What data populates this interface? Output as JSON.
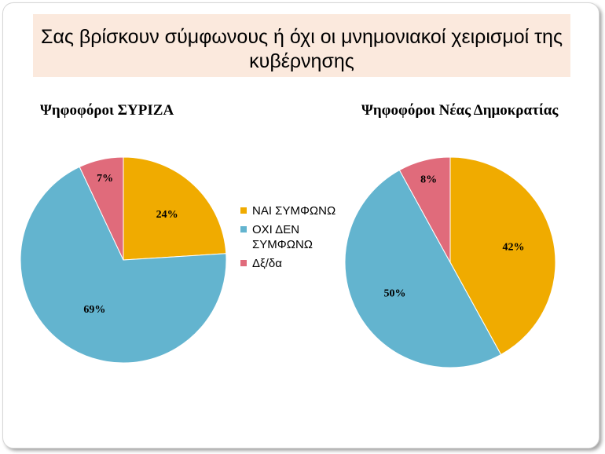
{
  "title": "Σας βρίσκουν σύμφωνους ή όχι οι μνημονιακοί χειρισμοί της κυβέρνησης",
  "legend": [
    {
      "label": "ΝΑΙ ΣΥΜΦΩΝΩ",
      "color": "#f0ab00"
    },
    {
      "label": "ΟΧΙ ΔΕΝ ΣΥΜΦΩΝΩ",
      "color": "#63b4cf"
    },
    {
      "label": "Δξ/δα",
      "color": "#e06b7b"
    }
  ],
  "chart_data": [
    {
      "type": "pie",
      "title": "Ψηφοφόροι ΣΥΡΙΖΑ",
      "categories": [
        "ΝΑΙ ΣΥΜΦΩΝΩ",
        "ΟΧΙ ΔΕΝ ΣΥΜΦΩΝΩ",
        "Δξ/δα"
      ],
      "values": [
        24,
        69,
        7
      ],
      "data_labels": [
        "24%",
        "69%",
        "7%"
      ],
      "colors": [
        "#f0ab00",
        "#63b4cf",
        "#e06b7b"
      ]
    },
    {
      "type": "pie",
      "title": "Ψηφοφόροι Νέας Δημοκρατίας",
      "categories": [
        "ΝΑΙ ΣΥΜΦΩΝΩ",
        "ΟΧΙ ΔΕΝ ΣΥΜΦΩΝΩ",
        "Δξ/δα"
      ],
      "values": [
        42,
        50,
        8
      ],
      "data_labels": [
        "42%",
        "50%",
        "8%"
      ],
      "colors": [
        "#f0ab00",
        "#63b4cf",
        "#e06b7b"
      ]
    }
  ]
}
